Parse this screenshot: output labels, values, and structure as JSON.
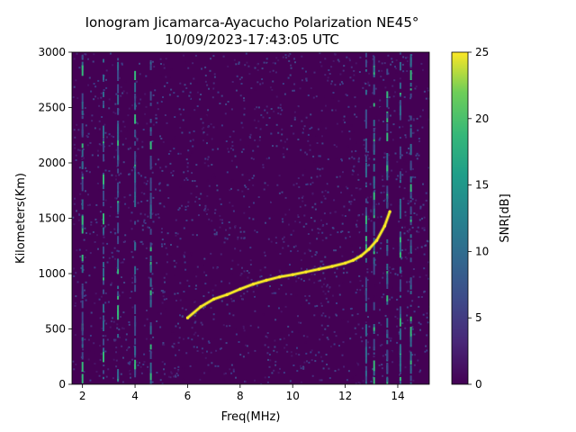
{
  "chart_data": {
    "type": "heatmap",
    "title_line1": "Ionogram Jicamarca-Ayacucho Polarization NE45°",
    "title_line2": "10/09/2023-17:43:05 UTC",
    "xlabel": "Freq(MHz)",
    "ylabel": "Kilometers(Km)",
    "colorbar_label": "SNR[dB]",
    "xlim": [
      1.6,
      15.2
    ],
    "ylim": [
      0,
      3000
    ],
    "x_ticks": [
      2,
      4,
      6,
      8,
      10,
      12,
      14
    ],
    "y_ticks": [
      0,
      500,
      1000,
      1500,
      2000,
      2500,
      3000
    ],
    "colorbar_range": [
      0,
      25
    ],
    "colorbar_ticks": [
      0,
      5,
      10,
      15,
      20,
      25
    ],
    "colormap": "viridis",
    "background_color": "#440154",
    "trace": {
      "freq_MHz": [
        6.0,
        6.5,
        7.0,
        7.5,
        8.0,
        8.5,
        9.0,
        9.5,
        10.0,
        10.5,
        11.0,
        11.5,
        12.0,
        12.3,
        12.6,
        12.9,
        13.2,
        13.5,
        13.7
      ],
      "range_km": [
        600,
        700,
        770,
        810,
        860,
        905,
        940,
        970,
        990,
        1015,
        1040,
        1065,
        1095,
        1120,
        1160,
        1220,
        1300,
        1430,
        1560
      ]
    },
    "interference_lines_MHz": [
      2.0,
      2.8,
      3.35,
      4.0,
      4.6,
      12.8,
      13.1,
      13.6,
      14.1,
      14.5
    ]
  }
}
